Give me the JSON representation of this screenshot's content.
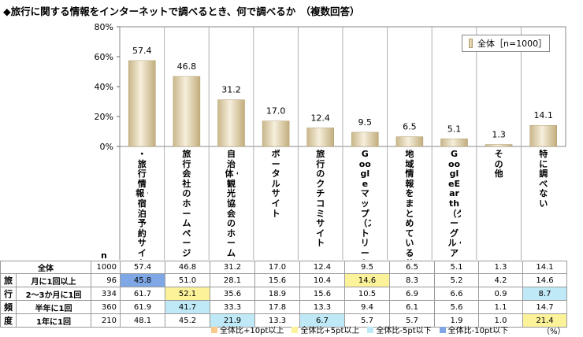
{
  "title": "◆旅行に関する情報をインターネットで調べるとき、何で調べるか　（複数回答）",
  "legend_label": "全体［n=1000］",
  "n_header": "n",
  "group_label": [
    "旅",
    "行",
    "頻",
    "度"
  ],
  "rows": [
    {
      "label": "全体",
      "n": "1000",
      "values": [
        "57.4",
        "46.8",
        "31.2",
        "17.0",
        "12.4",
        "9.5",
        "6.5",
        "5.1",
        "1.3",
        "14.1"
      ],
      "flags": [
        "",
        "",
        "",
        "",
        "",
        "",
        "",
        "",
        "",
        ""
      ]
    },
    {
      "label": "月に1回以上",
      "n": "96",
      "values": [
        "45.8",
        "51.0",
        "28.1",
        "15.6",
        "10.4",
        "14.6",
        "8.3",
        "5.2",
        "4.2",
        "14.6"
      ],
      "flags": [
        "blue",
        "",
        "",
        "",
        "",
        "yellow",
        "",
        "",
        "",
        ""
      ]
    },
    {
      "label": "2～3か月に1回",
      "n": "334",
      "values": [
        "61.7",
        "52.1",
        "35.6",
        "18.9",
        "15.6",
        "10.5",
        "6.9",
        "6.6",
        "0.9",
        "8.7"
      ],
      "flags": [
        "",
        "yellow",
        "",
        "",
        "",
        "",
        "",
        "",
        "",
        "cyan"
      ]
    },
    {
      "label": "半年に1回",
      "n": "360",
      "values": [
        "61.9",
        "41.7",
        "33.3",
        "17.8",
        "13.3",
        "9.4",
        "6.1",
        "5.6",
        "1.1",
        "14.7"
      ],
      "flags": [
        "",
        "cyan",
        "",
        "",
        "",
        "",
        "",
        "",
        "",
        ""
      ]
    },
    {
      "label": "1年に1回",
      "n": "210",
      "values": [
        "48.1",
        "45.2",
        "21.9",
        "13.3",
        "6.7",
        "5.7",
        "5.7",
        "1.9",
        "1.0",
        "21.4"
      ],
      "flags": [
        "",
        "",
        "cyan",
        "",
        "cyan",
        "",
        "",
        "",
        "",
        "yellow"
      ]
    }
  ],
  "key": [
    {
      "label": "全体比+10pt以上",
      "color": "#f7c98a"
    },
    {
      "label": "全体比+5pt以上",
      "color": "#fbf29a"
    },
    {
      "label": "全体比-5pt以下",
      "color": "#bfe9f7"
    },
    {
      "label": "全体比-10pt以下",
      "color": "#7fa7e6"
    }
  ],
  "unit": "（%）",
  "chart_data": {
    "type": "bar",
    "title": "◆旅行に関する情報をインターネットで調べるとき、何で調べるか　（複数回答）",
    "categories": [
      "・旅行情報・宿泊予約サイト",
      "旅行会社のホームページ",
      "自治体・観光協会のホームページ",
      "ポータルサイト",
      "旅行のクチコミサイト",
      "Googleマップ（ストリートビュー）",
      "地域情報をまとめているサイト",
      "Google Earth（グーグル・アース）",
      "その他",
      "特に調べない"
    ],
    "category_display": [
      "・旅行情報・宿泊予約サイト",
      "旅行会社のホームページ",
      "自治体・観光協会のホームページ",
      "ポータルサイト",
      "旅行のクチコミサイト",
      "Googleマップ（ストリートビュー）",
      "地域情報をまとめているサイト",
      "GoogleEarth（グーグル・アース）",
      "その他",
      "特に調べない"
    ],
    "series": [
      {
        "name": "全体［n=1000］",
        "values": [
          57.4,
          46.8,
          31.2,
          17.0,
          12.4,
          9.5,
          6.5,
          5.1,
          1.3,
          14.1
        ]
      }
    ],
    "value_labels": [
      "57.4",
      "46.8",
      "31.2",
      "17.0",
      "12.4",
      "9.5",
      "6.5",
      "5.1",
      "1.3",
      "14.1"
    ],
    "yticks": [
      "0%",
      "20%",
      "40%",
      "60%",
      "80%"
    ],
    "ylim": [
      0,
      80
    ],
    "grid": false,
    "legend": "top-right"
  }
}
